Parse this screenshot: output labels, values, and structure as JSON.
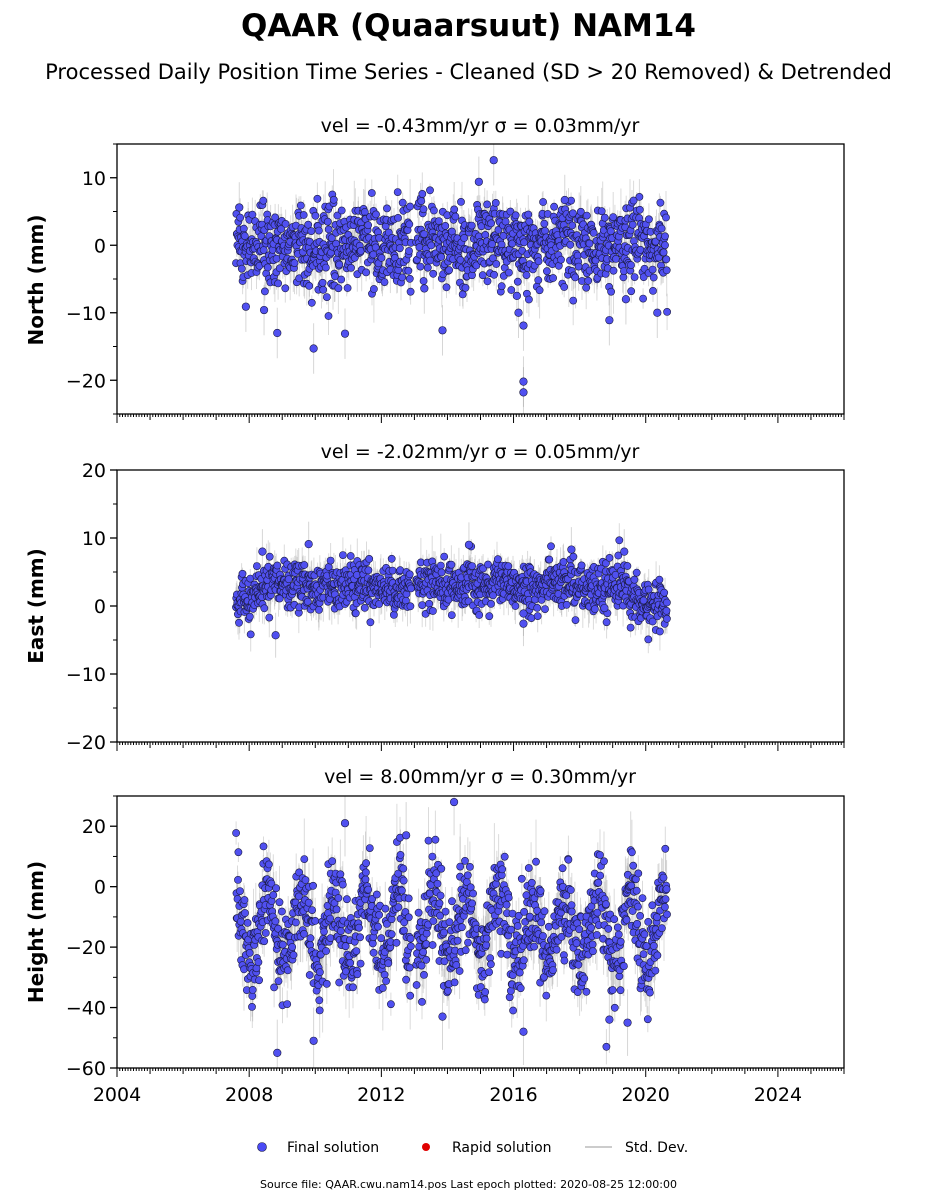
{
  "figure": {
    "title": "QAAR (Quaarsuut) NAM14",
    "subtitle": "Processed Daily Position Time Series - Cleaned (SD > 20 Removed) & Detrended",
    "footer": "Source file: QAAR.cwu.nam14.pos  Last epoch plotted: 2020-08-25 12:00:00"
  },
  "legend": {
    "placement": "bottom-center",
    "items": [
      {
        "label": "Final solution",
        "marker": "dot",
        "color": "#4a4af5"
      },
      {
        "label": "Rapid solution",
        "marker": "dot",
        "color": "#e00000"
      },
      {
        "label": "Std. Dev.",
        "marker": "line",
        "color": "#bbbbbb"
      }
    ]
  },
  "colors": {
    "final_fill": "#5050f0",
    "final_edge": "#1a1a40",
    "stddev": "#999999"
  },
  "chart_data": [
    {
      "type": "scatter",
      "title": "vel = -0.43mm/yr   σ = 0.03mm/yr",
      "ylabel": "North (mm)",
      "xlim": [
        2004,
        2026
      ],
      "ylim": [
        -25,
        15
      ],
      "yticks": [
        -20,
        -10,
        0,
        10
      ],
      "xticks": [],
      "series": [
        {
          "cluster": {
            "data_start": 2007.6,
            "data_end": 2020.65,
            "gap": [
              2012.9,
              2013.05
            ]
          },
          "y_spread": 3.0,
          "err_spread": 1.7,
          "trend_amp": 0.5,
          "outliers": [
            {
              "x": 2007.7,
              "y": 5.6
            },
            {
              "x": 2007.9,
              "y": -9.1
            },
            {
              "x": 2008.45,
              "y": -9.6
            },
            {
              "x": 2008.85,
              "y": -13.0
            },
            {
              "x": 2009.95,
              "y": -15.3
            },
            {
              "x": 2010.9,
              "y": -13.1
            },
            {
              "x": 2013.3,
              "y": -6.4
            },
            {
              "x": 2013.85,
              "y": -12.6
            },
            {
              "x": 2014.95,
              "y": 9.4
            },
            {
              "x": 2015.4,
              "y": 12.6
            },
            {
              "x": 2016.1,
              "y": -7.5
            },
            {
              "x": 2016.15,
              "y": -10.0
            },
            {
              "x": 2016.3,
              "y": -11.9
            },
            {
              "x": 2016.3,
              "y": -20.2
            },
            {
              "x": 2016.3,
              "y": -21.8
            },
            {
              "x": 2017.55,
              "y": 6.7
            },
            {
              "x": 2018.9,
              "y": -11.1
            },
            {
              "x": 2019.4,
              "y": -8.0
            },
            {
              "x": 2020.35,
              "y": -10.0
            }
          ]
        }
      ]
    },
    {
      "type": "scatter",
      "title": "vel = -2.02mm/yr   σ = 0.05mm/yr",
      "ylabel": "East (mm)",
      "xlim": [
        2004,
        2026
      ],
      "ylim": [
        -20,
        20
      ],
      "yticks": [
        -20,
        -10,
        0,
        10,
        20
      ],
      "xticks": [],
      "series": [
        {
          "cluster": {
            "data_start": 2007.6,
            "data_end": 2020.65,
            "gap": [
              2012.9,
              2013.05
            ]
          },
          "y_spread": 1.7,
          "err_spread": 1.5,
          "trend_amp": 0.4,
          "offsets": [
            {
              "from": 2007.6,
              "to": 2008.2,
              "y": 1.0
            },
            {
              "from": 2008.2,
              "to": 2019.5,
              "y": 3.0
            },
            {
              "from": 2019.5,
              "to": 2020.7,
              "y": 0.5
            }
          ],
          "outliers": [
            {
              "x": 2008.8,
              "y": -4.3
            },
            {
              "x": 2009.8,
              "y": 9.1
            },
            {
              "x": 2008.4,
              "y": 8.0
            },
            {
              "x": 2014.65,
              "y": 9.0
            },
            {
              "x": 2016.3,
              "y": -2.6
            },
            {
              "x": 2016.3,
              "y": -1.1
            },
            {
              "x": 2017.75,
              "y": 8.3
            },
            {
              "x": 2018.75,
              "y": -0.3
            },
            {
              "x": 2019.35,
              "y": 8.0
            }
          ]
        }
      ]
    },
    {
      "type": "scatter",
      "title": "vel = 8.00mm/yr   σ = 0.30mm/yr",
      "ylabel": "Height (mm)",
      "xlim": [
        2004,
        2026
      ],
      "ylim": [
        -60,
        30
      ],
      "yticks": [
        -60,
        -40,
        -20,
        0,
        20
      ],
      "xticks": [
        2004,
        2008,
        2012,
        2016,
        2020,
        2024
      ],
      "series": [
        {
          "cluster": {
            "data_start": 2007.6,
            "data_end": 2020.65,
            "gap": [
              2012.9,
              2013.05
            ]
          },
          "y_spread": 8.0,
          "err_spread": 5.0,
          "seasonal_amp": 10.0,
          "center": -14,
          "outliers": [
            {
              "x": 2008.85,
              "y": -55.0
            },
            {
              "x": 2009.95,
              "y": -51.0
            },
            {
              "x": 2010.9,
              "y": 21.0
            },
            {
              "x": 2012.75,
              "y": 17.0
            },
            {
              "x": 2013.85,
              "y": -43.0
            },
            {
              "x": 2014.2,
              "y": 28.0
            },
            {
              "x": 2016.3,
              "y": -48.0
            },
            {
              "x": 2018.9,
              "y": -44.0
            },
            {
              "x": 2019.45,
              "y": -45.0
            }
          ]
        }
      ]
    }
  ]
}
